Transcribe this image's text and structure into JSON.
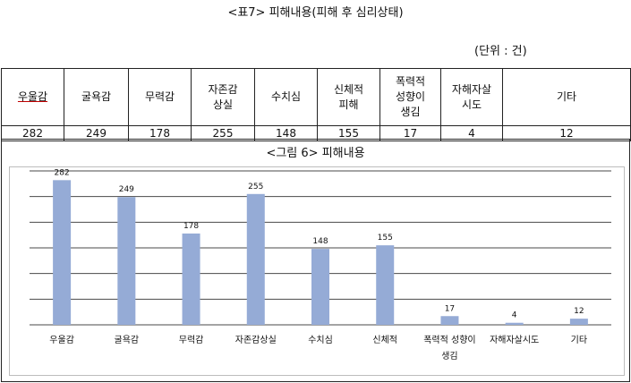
{
  "heading": "<표7> 피해내용(피해 후 심리상태)",
  "unit_note": "(단위 : 건)",
  "table": {
    "headers": [
      "우울감",
      "굴욕감",
      "무력감",
      "자존감\n상실",
      "수치심",
      "신체적\n피해",
      "폭력적\n성향이\n생김",
      "자해자살\n시도",
      "기타"
    ],
    "values": [
      "282",
      "249",
      "178",
      "255",
      "148",
      "155",
      "17",
      "4",
      "12"
    ]
  },
  "chart_caption": "<그림 6> 피해내용",
  "chart_data": {
    "type": "bar",
    "categories": [
      "우울감",
      "굴욕감",
      "무력감",
      "자존감상실",
      "수치심",
      "신체적",
      "폭력적 성향이 생김",
      "자해자살시도",
      "기타"
    ],
    "values": [
      282,
      249,
      178,
      255,
      148,
      155,
      17,
      4,
      12
    ],
    "ylim": [
      0,
      300
    ],
    "grid": true,
    "bar_color": "#95abd6",
    "grid_color": "#4a4a4a"
  }
}
